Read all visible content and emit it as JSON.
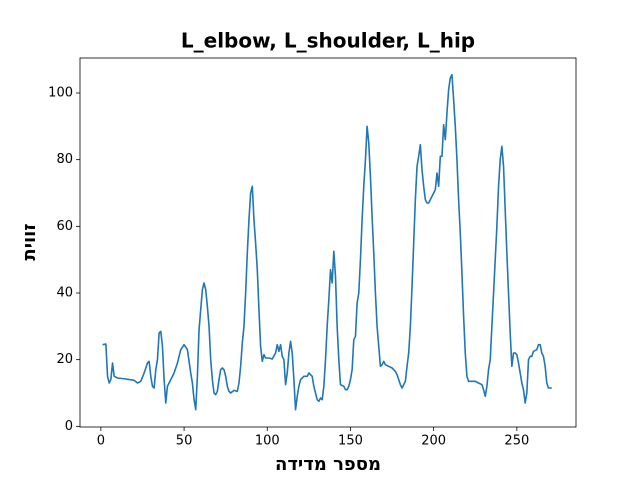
{
  "chart_data": {
    "type": "line",
    "title": "L_elbow, L_shoulder, L_hip",
    "x_label": "מספר מדידה",
    "y_label": "זווית",
    "color": "#1f77b4",
    "grid": false,
    "x": [
      1,
      3,
      4,
      5,
      6,
      7,
      8,
      10,
      15,
      20,
      22,
      24,
      26,
      28,
      29,
      30,
      31,
      32,
      33,
      34,
      35,
      36,
      37,
      38,
      39,
      40,
      42,
      44,
      46,
      48,
      50,
      52,
      54,
      55,
      56,
      57,
      58,
      59,
      60,
      61,
      62,
      63,
      64,
      65,
      66,
      67,
      68,
      69,
      70,
      71,
      72,
      73,
      74,
      75,
      76,
      77,
      78,
      80,
      82,
      83,
      84,
      85,
      86,
      87,
      88,
      89,
      90,
      91,
      92,
      93,
      94,
      95,
      96,
      97,
      98,
      99,
      101,
      103,
      105,
      106,
      107,
      108,
      109,
      110,
      111,
      112,
      113,
      114,
      115,
      116,
      117,
      118,
      119,
      120,
      122,
      124,
      125,
      127,
      128,
      129,
      130,
      131,
      132,
      133,
      134,
      135,
      136,
      137,
      138,
      139,
      140,
      141,
      142,
      143,
      144,
      146,
      147,
      148,
      149,
      150,
      151,
      152,
      153,
      154,
      155,
      156,
      157,
      158,
      159,
      160,
      161,
      162,
      163,
      164,
      165,
      166,
      167,
      168,
      169,
      170,
      171,
      173,
      175,
      177,
      178,
      179,
      180,
      181,
      182,
      183,
      184,
      185,
      186,
      187,
      188,
      189,
      190,
      191,
      192,
      193,
      194,
      195,
      196,
      197,
      198,
      199,
      200,
      201,
      202,
      203,
      204,
      205,
      206,
      207,
      208,
      209,
      210,
      211,
      212,
      213,
      214,
      215,
      216,
      217,
      218,
      219,
      220,
      221,
      223,
      225,
      227,
      229,
      230,
      231,
      232,
      233,
      234,
      235,
      236,
      237,
      238,
      239,
      240,
      241,
      242,
      243,
      244,
      245,
      246,
      247,
      248,
      249,
      250,
      251,
      252,
      253,
      254,
      255,
      256,
      257,
      258,
      259,
      260,
      262,
      263,
      264,
      265,
      266,
      267,
      268,
      269,
      271
    ],
    "values": [
      24.5,
      24.7,
      15,
      13,
      14,
      19,
      15,
      14.5,
      14.2,
      13.8,
      13,
      13.5,
      16,
      19,
      19.5,
      15,
      12,
      11.5,
      17,
      20,
      28,
      28.5,
      24,
      14,
      7,
      12,
      14,
      16,
      19,
      23,
      24.5,
      23,
      16,
      13,
      8,
      5,
      15,
      29,
      35,
      41,
      43,
      41,
      36,
      30,
      20,
      14,
      10,
      9.5,
      10.5,
      14,
      17,
      17.5,
      17,
      15,
      12,
      10.5,
      10,
      10.8,
      10.5,
      13,
      18,
      25,
      30,
      40,
      52,
      62,
      70,
      72,
      62,
      55,
      47,
      35,
      24,
      19.5,
      21.5,
      20.5,
      20.5,
      20.2,
      22,
      24.5,
      22.5,
      24.5,
      21,
      20,
      12.5,
      16,
      22,
      25.5,
      22,
      14,
      5,
      9,
      12,
      14,
      15,
      15,
      16,
      15,
      12,
      10,
      8,
      7.5,
      8.5,
      8,
      12,
      20,
      30,
      38,
      47,
      43,
      52.5,
      45,
      30,
      20,
      12.5,
      12,
      11,
      11,
      12,
      14,
      17,
      26,
      27,
      37,
      40,
      50,
      62,
      72,
      80,
      90,
      85,
      75,
      63,
      52,
      40,
      30,
      24,
      18,
      18.5,
      19.5,
      18.5,
      18,
      17.5,
      16.5,
      15.5,
      14,
      12.5,
      11.5,
      12.5,
      13.5,
      18,
      22,
      30,
      42,
      55,
      68,
      78,
      81,
      84.5,
      77,
      72,
      68,
      67,
      67,
      68,
      69,
      70,
      71,
      76,
      72,
      81,
      81,
      90.5,
      86,
      94,
      101,
      104.5,
      105.5,
      98,
      90,
      80,
      68,
      58,
      46,
      33,
      22,
      15,
      13.5,
      13.5,
      13.5,
      13,
      12.5,
      11,
      9,
      12,
      17,
      20,
      30,
      40,
      50,
      60,
      72,
      80,
      84,
      78,
      65,
      52,
      40,
      28,
      18,
      22,
      22,
      21.5,
      19,
      16,
      13,
      11,
      7,
      10,
      20,
      21,
      21,
      22.5,
      23,
      24.5,
      24.5,
      22,
      21,
      18,
      13,
      11.5,
      11.5
    ],
    "xlim": [
      -12.55,
      285.55
    ],
    "xticks": [
      0,
      50,
      100,
      150,
      200,
      250
    ],
    "ylim": [
      -0.2,
      110.5
    ],
    "yticks": [
      0,
      20,
      40,
      60,
      80,
      100
    ]
  }
}
